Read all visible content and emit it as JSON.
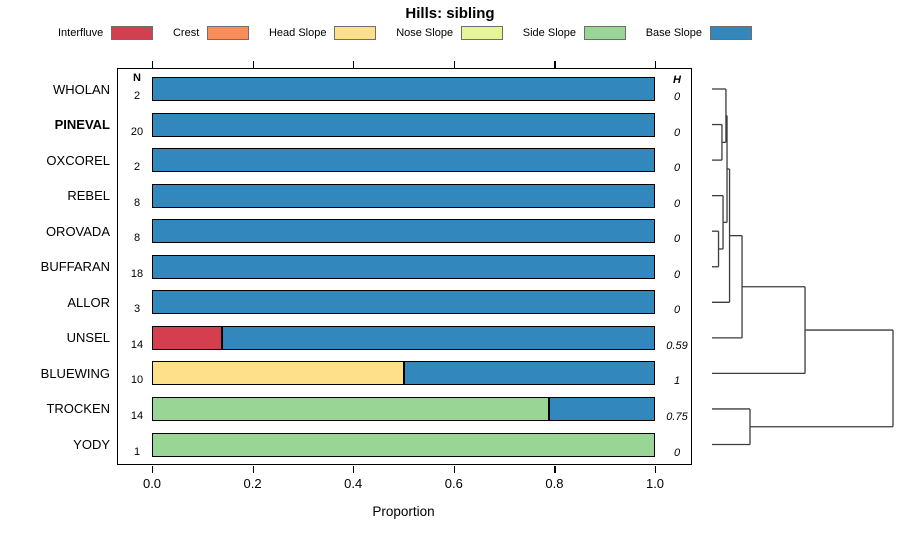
{
  "title": "Hills: sibling",
  "legend": {
    "items": [
      {
        "label": "Interfluve",
        "color": "#D53E4F"
      },
      {
        "label": "Crest",
        "color": "#FC8D59"
      },
      {
        "label": "Head Slope",
        "color": "#FEE08B"
      },
      {
        "label": "Nose Slope",
        "color": "#E6F598"
      },
      {
        "label": "Side Slope",
        "color": "#99D594"
      },
      {
        "label": "Base Slope",
        "color": "#3288BD"
      }
    ]
  },
  "columns": {
    "n_header": "N",
    "h_header": "H"
  },
  "axis": {
    "label": "Proportion",
    "ticks": [
      "0.0",
      "0.2",
      "0.4",
      "0.6",
      "0.8",
      "1.0"
    ]
  },
  "chart_data": {
    "type": "bar",
    "orientation": "horizontal_stacked",
    "title": "Hills: sibling",
    "xlabel": "Proportion",
    "xlim": [
      0,
      1
    ],
    "legend_position": "top",
    "classes": [
      "Interfluve",
      "Crest",
      "Head Slope",
      "Nose Slope",
      "Side Slope",
      "Base Slope"
    ],
    "rows": [
      {
        "label": "WHOLAN",
        "N": 2,
        "H": "0",
        "bold": false,
        "segments": [
          {
            "class": "Base Slope",
            "value": 1.0
          }
        ]
      },
      {
        "label": "PINEVAL",
        "N": 20,
        "H": "0",
        "bold": true,
        "segments": [
          {
            "class": "Base Slope",
            "value": 1.0
          }
        ]
      },
      {
        "label": "OXCOREL",
        "N": 2,
        "H": "0",
        "bold": false,
        "segments": [
          {
            "class": "Base Slope",
            "value": 1.0
          }
        ]
      },
      {
        "label": "REBEL",
        "N": 8,
        "H": "0",
        "bold": false,
        "segments": [
          {
            "class": "Base Slope",
            "value": 1.0
          }
        ]
      },
      {
        "label": "OROVADA",
        "N": 8,
        "H": "0",
        "bold": false,
        "segments": [
          {
            "class": "Base Slope",
            "value": 1.0
          }
        ]
      },
      {
        "label": "BUFFARAN",
        "N": 18,
        "H": "0",
        "bold": false,
        "segments": [
          {
            "class": "Base Slope",
            "value": 1.0
          }
        ]
      },
      {
        "label": "ALLOR",
        "N": 3,
        "H": "0",
        "bold": false,
        "segments": [
          {
            "class": "Base Slope",
            "value": 1.0
          }
        ]
      },
      {
        "label": "UNSEL",
        "N": 14,
        "H": "0.59",
        "bold": false,
        "segments": [
          {
            "class": "Interfluve",
            "value": 0.14
          },
          {
            "class": "Base Slope",
            "value": 0.86
          }
        ]
      },
      {
        "label": "BLUEWING",
        "N": 10,
        "H": "1",
        "bold": false,
        "segments": [
          {
            "class": "Head Slope",
            "value": 0.5
          },
          {
            "class": "Base Slope",
            "value": 0.5
          }
        ]
      },
      {
        "label": "TROCKEN",
        "N": 14,
        "H": "0.75",
        "bold": false,
        "segments": [
          {
            "class": "Side Slope",
            "value": 0.79
          },
          {
            "class": "Base Slope",
            "value": 0.21
          }
        ]
      },
      {
        "label": "YODY",
        "N": 1,
        "H": "0",
        "bold": false,
        "segments": [
          {
            "class": "Side Slope",
            "value": 1.0
          }
        ]
      }
    ],
    "dendrogram": {
      "note": "heights relative: 0 = leaves, 1 = root",
      "tree": {
        "h": 1.0,
        "children": [
          {
            "h": 0.514,
            "children": [
              {
                "h": 0.166,
                "children": [
                  {
                    "h": 0.097,
                    "children": [
                      {
                        "h": 0.083,
                        "children": [
                          {
                            "h": 0.077,
                            "children": [
                              {
                                "leaf": "WHOLAN"
                              },
                              {
                                "h": 0.055,
                                "children": [
                                  {
                                    "leaf": "PINEVAL"
                                  },
                                  {
                                    "leaf": "OXCOREL"
                                  }
                                ]
                              }
                            ]
                          },
                          {
                            "h": 0.061,
                            "children": [
                              {
                                "leaf": "REBEL"
                              },
                              {
                                "h": 0.036,
                                "children": [
                                  {
                                    "leaf": "OROVADA"
                                  },
                                  {
                                    "leaf": "BUFFARAN"
                                  }
                                ]
                              }
                            ]
                          }
                        ]
                      },
                      {
                        "leaf": "ALLOR"
                      }
                    ]
                  },
                  {
                    "leaf": "UNSEL"
                  }
                ]
              },
              {
                "leaf": "BLUEWING"
              }
            ]
          },
          {
            "h": 0.21,
            "children": [
              {
                "leaf": "TROCKEN"
              },
              {
                "leaf": "YODY"
              }
            ]
          }
        ]
      }
    }
  }
}
